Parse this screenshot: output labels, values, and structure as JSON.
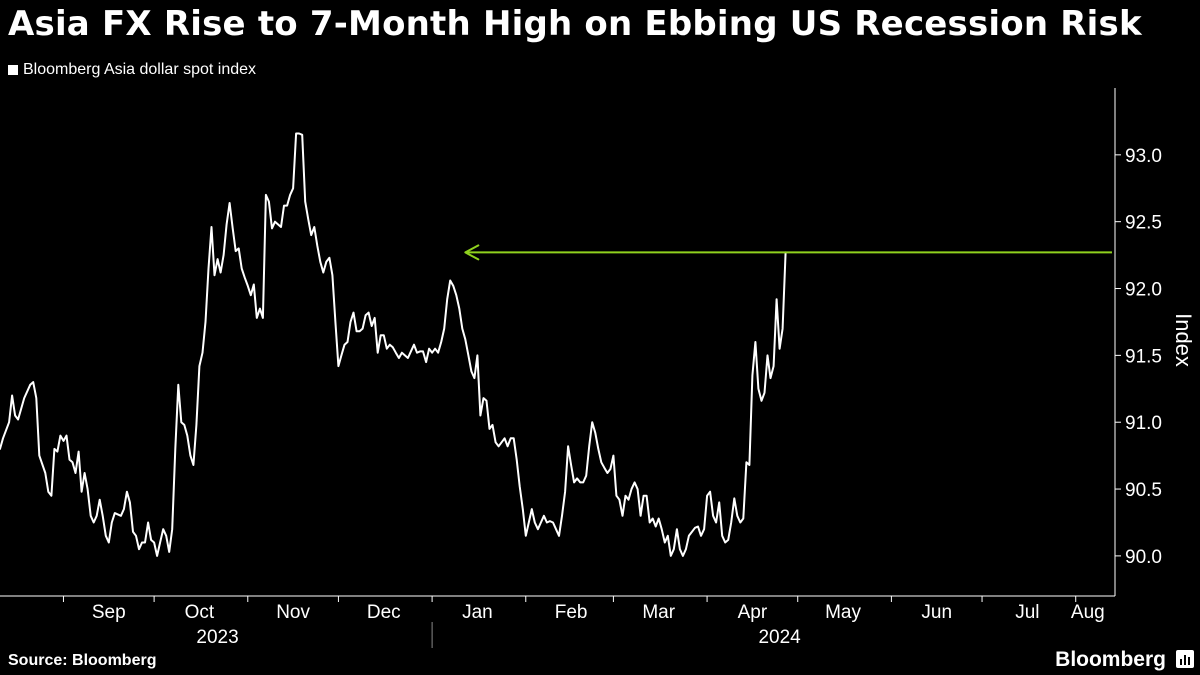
{
  "title": "Asia FX Rise to 7-Month High on Ebbing US Recession Risk",
  "source": "Source: Bloomberg",
  "brand": "Bloomberg",
  "colors": {
    "background": "#000000",
    "line": "#ffffff",
    "annotation": "#8fd11e",
    "axis": "#ffffff"
  },
  "chart_data": {
    "type": "line",
    "title": "Asia FX Rise to 7-Month High on Ebbing US Recession Risk",
    "ylabel": "Index",
    "ylim": [
      89.7,
      93.5
    ],
    "yticks": [
      90.0,
      90.5,
      91.0,
      91.5,
      92.0,
      92.5,
      93.0
    ],
    "ytick_labels": [
      "90.0",
      "90.5",
      "91.0",
      "91.5",
      "92.0",
      "92.5",
      "93.0"
    ],
    "xlim_day": [
      0,
      369
    ],
    "x_unit": "days since 2023-08-10",
    "month_ticks": [
      21,
      51,
      82,
      112,
      143,
      174,
      203,
      234,
      264,
      295,
      325,
      356
    ],
    "month_labels": [
      "Sep",
      "Oct",
      "Nov",
      "Dec",
      "Jan",
      "Feb",
      "Mar",
      "Apr",
      "May",
      "Jun",
      "Jul",
      "Aug"
    ],
    "month_label_days": [
      36,
      66,
      97,
      127,
      158,
      189,
      218,
      249,
      279,
      310,
      340,
      360
    ],
    "year_labels": [
      {
        "label": "2023",
        "day": 72
      },
      {
        "label": "2024",
        "day": 258
      }
    ],
    "year_divider_day": 143,
    "legend": [
      "Bloomberg Asia dollar spot index"
    ],
    "annotation": {
      "type": "arrow",
      "label": "",
      "from": {
        "day": 368,
        "value": 92.27
      },
      "to": {
        "day": 154,
        "value": 92.27
      }
    },
    "series": [
      {
        "name": "Bloomberg Asia dollar spot index",
        "points": [
          [
            0,
            90.8
          ],
          [
            1,
            90.88
          ],
          [
            3,
            91.0
          ],
          [
            4,
            91.2
          ],
          [
            5,
            91.05
          ],
          [
            6,
            91.02
          ],
          [
            8,
            91.18
          ],
          [
            10,
            91.28
          ],
          [
            11,
            91.3
          ],
          [
            12,
            91.18
          ],
          [
            13,
            90.75
          ],
          [
            15,
            90.62
          ],
          [
            16,
            90.48
          ],
          [
            17,
            90.45
          ],
          [
            18,
            90.8
          ],
          [
            19,
            90.78
          ],
          [
            20,
            90.9
          ],
          [
            21,
            90.86
          ],
          [
            22,
            90.9
          ],
          [
            23,
            90.72
          ],
          [
            24,
            90.7
          ],
          [
            25,
            90.62
          ],
          [
            26,
            90.78
          ],
          [
            27,
            90.48
          ],
          [
            28,
            90.62
          ],
          [
            29,
            90.5
          ],
          [
            30,
            90.3
          ],
          [
            31,
            90.25
          ],
          [
            32,
            90.3
          ],
          [
            33,
            90.42
          ],
          [
            34,
            90.3
          ],
          [
            35,
            90.15
          ],
          [
            36,
            90.1
          ],
          [
            37,
            90.25
          ],
          [
            38,
            90.32
          ],
          [
            40,
            90.3
          ],
          [
            41,
            90.35
          ],
          [
            42,
            90.48
          ],
          [
            43,
            90.4
          ],
          [
            44,
            90.18
          ],
          [
            45,
            90.15
          ],
          [
            46,
            90.05
          ],
          [
            47,
            90.1
          ],
          [
            48,
            90.1
          ],
          [
            49,
            90.25
          ],
          [
            50,
            90.12
          ],
          [
            51,
            90.1
          ],
          [
            52,
            90.0
          ],
          [
            53,
            90.1
          ],
          [
            54,
            90.2
          ],
          [
            55,
            90.15
          ],
          [
            56,
            90.03
          ],
          [
            57,
            90.2
          ],
          [
            58,
            90.8
          ],
          [
            59,
            91.28
          ],
          [
            60,
            91.0
          ],
          [
            61,
            90.98
          ],
          [
            62,
            90.9
          ],
          [
            63,
            90.75
          ],
          [
            64,
            90.68
          ],
          [
            65,
            90.98
          ],
          [
            66,
            91.42
          ],
          [
            67,
            91.52
          ],
          [
            68,
            91.75
          ],
          [
            69,
            92.15
          ],
          [
            70,
            92.46
          ],
          [
            71,
            92.1
          ],
          [
            72,
            92.22
          ],
          [
            73,
            92.12
          ],
          [
            74,
            92.25
          ],
          [
            75,
            92.48
          ],
          [
            76,
            92.64
          ],
          [
            77,
            92.45
          ],
          [
            78,
            92.28
          ],
          [
            79,
            92.3
          ],
          [
            80,
            92.15
          ],
          [
            81,
            92.08
          ],
          [
            82,
            92.02
          ],
          [
            83,
            91.95
          ],
          [
            84,
            92.03
          ],
          [
            85,
            91.78
          ],
          [
            86,
            91.85
          ],
          [
            87,
            91.78
          ],
          [
            88,
            92.7
          ],
          [
            89,
            92.65
          ],
          [
            90,
            92.45
          ],
          [
            91,
            92.5
          ],
          [
            92,
            92.48
          ],
          [
            93,
            92.46
          ],
          [
            94,
            92.62
          ],
          [
            95,
            92.62
          ],
          [
            96,
            92.7
          ],
          [
            97,
            92.75
          ],
          [
            98,
            93.16
          ],
          [
            99,
            93.16
          ],
          [
            100,
            93.15
          ],
          [
            101,
            92.65
          ],
          [
            102,
            92.52
          ],
          [
            103,
            92.4
          ],
          [
            104,
            92.46
          ],
          [
            105,
            92.32
          ],
          [
            106,
            92.2
          ],
          [
            107,
            92.12
          ],
          [
            108,
            92.2
          ],
          [
            109,
            92.23
          ],
          [
            110,
            92.1
          ],
          [
            111,
            91.75
          ],
          [
            112,
            91.42
          ],
          [
            113,
            91.5
          ],
          [
            114,
            91.58
          ],
          [
            115,
            91.6
          ],
          [
            116,
            91.75
          ],
          [
            117,
            91.82
          ],
          [
            118,
            91.68
          ],
          [
            119,
            91.68
          ],
          [
            120,
            91.7
          ],
          [
            121,
            91.8
          ],
          [
            122,
            91.82
          ],
          [
            123,
            91.72
          ],
          [
            124,
            91.78
          ],
          [
            125,
            91.52
          ],
          [
            126,
            91.65
          ],
          [
            127,
            91.65
          ],
          [
            128,
            91.55
          ],
          [
            129,
            91.58
          ],
          [
            130,
            91.56
          ],
          [
            131,
            91.52
          ],
          [
            132,
            91.48
          ],
          [
            133,
            91.52
          ],
          [
            134,
            91.5
          ],
          [
            135,
            91.48
          ],
          [
            136,
            91.53
          ],
          [
            137,
            91.58
          ],
          [
            138,
            91.52
          ],
          [
            139,
            91.53
          ],
          [
            140,
            91.53
          ],
          [
            141,
            91.45
          ],
          [
            142,
            91.55
          ],
          [
            143,
            91.52
          ],
          [
            144,
            91.55
          ],
          [
            145,
            91.52
          ],
          [
            146,
            91.6
          ],
          [
            147,
            91.7
          ],
          [
            148,
            91.92
          ],
          [
            149,
            92.06
          ],
          [
            150,
            92.02
          ],
          [
            151,
            91.95
          ],
          [
            152,
            91.85
          ],
          [
            153,
            91.7
          ],
          [
            154,
            91.62
          ],
          [
            155,
            91.5
          ],
          [
            156,
            91.38
          ],
          [
            157,
            91.33
          ],
          [
            158,
            91.5
          ],
          [
            159,
            91.05
          ],
          [
            160,
            91.18
          ],
          [
            161,
            91.16
          ],
          [
            162,
            90.95
          ],
          [
            163,
            90.98
          ],
          [
            164,
            90.85
          ],
          [
            165,
            90.82
          ],
          [
            166,
            90.85
          ],
          [
            167,
            90.88
          ],
          [
            168,
            90.82
          ],
          [
            169,
            90.88
          ],
          [
            170,
            90.88
          ],
          [
            171,
            90.72
          ],
          [
            172,
            90.52
          ],
          [
            173,
            90.35
          ],
          [
            174,
            90.15
          ],
          [
            175,
            90.25
          ],
          [
            176,
            90.35
          ],
          [
            177,
            90.25
          ],
          [
            178,
            90.2
          ],
          [
            179,
            90.25
          ],
          [
            180,
            90.3
          ],
          [
            181,
            90.25
          ],
          [
            182,
            90.26
          ],
          [
            183,
            90.25
          ],
          [
            184,
            90.2
          ],
          [
            185,
            90.15
          ],
          [
            186,
            90.3
          ],
          [
            187,
            90.48
          ],
          [
            188,
            90.82
          ],
          [
            189,
            90.68
          ],
          [
            190,
            90.55
          ],
          [
            191,
            90.58
          ],
          [
            192,
            90.55
          ],
          [
            193,
            90.55
          ],
          [
            194,
            90.6
          ],
          [
            195,
            90.82
          ],
          [
            196,
            91.0
          ],
          [
            197,
            90.92
          ],
          [
            198,
            90.8
          ],
          [
            199,
            90.7
          ],
          [
            200,
            90.66
          ],
          [
            201,
            90.62
          ],
          [
            202,
            90.65
          ],
          [
            203,
            90.75
          ],
          [
            204,
            90.45
          ],
          [
            205,
            90.42
          ],
          [
            206,
            90.3
          ],
          [
            207,
            90.45
          ],
          [
            208,
            90.42
          ],
          [
            209,
            90.5
          ],
          [
            210,
            90.55
          ],
          [
            211,
            90.5
          ],
          [
            212,
            90.3
          ],
          [
            213,
            90.45
          ],
          [
            214,
            90.45
          ],
          [
            215,
            90.25
          ],
          [
            216,
            90.28
          ],
          [
            217,
            90.22
          ],
          [
            218,
            90.28
          ],
          [
            219,
            90.2
          ],
          [
            220,
            90.1
          ],
          [
            221,
            90.15
          ],
          [
            222,
            90.0
          ],
          [
            223,
            90.05
          ],
          [
            224,
            90.2
          ],
          [
            225,
            90.05
          ],
          [
            226,
            90.0
          ],
          [
            227,
            90.05
          ],
          [
            228,
            90.15
          ],
          [
            229,
            90.18
          ],
          [
            230,
            90.21
          ],
          [
            231,
            90.22
          ],
          [
            232,
            90.15
          ],
          [
            233,
            90.2
          ],
          [
            234,
            90.45
          ],
          [
            235,
            90.48
          ],
          [
            236,
            90.3
          ],
          [
            237,
            90.25
          ],
          [
            238,
            90.4
          ],
          [
            239,
            90.15
          ],
          [
            240,
            90.1
          ],
          [
            241,
            90.12
          ],
          [
            242,
            90.25
          ],
          [
            243,
            90.43
          ],
          [
            244,
            90.3
          ],
          [
            245,
            90.25
          ],
          [
            246,
            90.28
          ],
          [
            247,
            90.7
          ],
          [
            248,
            90.68
          ],
          [
            249,
            91.35
          ],
          [
            250,
            91.6
          ],
          [
            251,
            91.25
          ],
          [
            252,
            91.16
          ],
          [
            253,
            91.22
          ],
          [
            254,
            91.5
          ],
          [
            255,
            91.33
          ],
          [
            256,
            91.42
          ],
          [
            257,
            91.92
          ],
          [
            258,
            91.55
          ],
          [
            259,
            91.7
          ],
          [
            260,
            92.27
          ]
        ]
      }
    ]
  }
}
